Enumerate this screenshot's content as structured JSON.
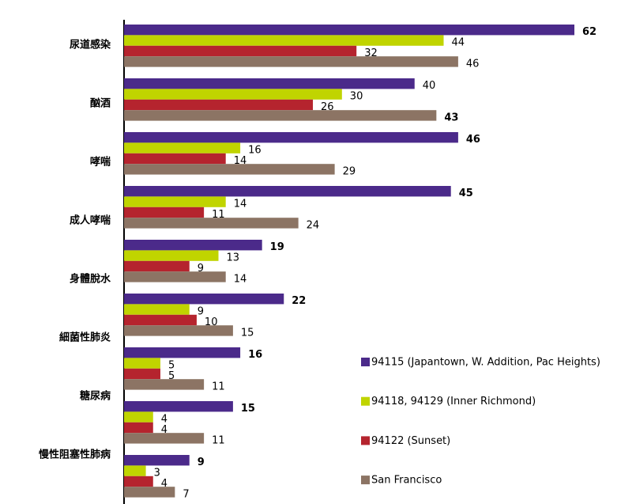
{
  "chart_data": {
    "type": "bar",
    "orientation": "horizontal",
    "categories": [
      "尿道感染",
      "酗酒",
      "哮喘",
      "成人哮喘",
      "身體脫水",
      "細菌性肺炎",
      "糖尿病",
      "慢性阻塞性肺病",
      null
    ],
    "series": [
      {
        "name": "94115 (Japantown, W. Addition, Pac Heights)",
        "color": "#4b2a8a",
        "values": [
          62,
          40,
          46,
          45,
          19,
          22,
          16,
          15,
          9
        ]
      },
      {
        "name": "94118, 94129 (Inner Richmond)",
        "color": "#c0d400",
        "values": [
          44,
          30,
          16,
          14,
          13,
          9,
          5,
          4,
          3
        ]
      },
      {
        "name": "94122 (Sunset)",
        "color": "#b5242e",
        "values": [
          32,
          26,
          14,
          11,
          9,
          10,
          5,
          4,
          4
        ]
      },
      {
        "name": "San Francisco",
        "color": "#8c7464",
        "values": [
          46,
          43,
          29,
          24,
          14,
          15,
          11,
          11,
          7
        ]
      }
    ],
    "legend": "lower right"
  }
}
